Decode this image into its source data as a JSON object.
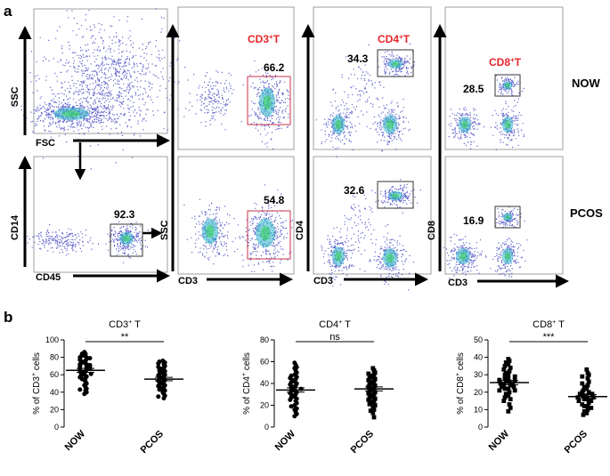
{
  "panel_a": {
    "letter": "a",
    "row_labels": [
      "NOW",
      "PCOS"
    ],
    "gate_titles": [
      {
        "main": "CD3",
        "sup": "+",
        "tail": "T"
      },
      {
        "main": "CD4",
        "sup": "+",
        "tail": "T"
      },
      {
        "main": "CD8",
        "sup": "+",
        "tail": "T"
      }
    ],
    "axis_labels": {
      "ssc": "SSC",
      "fsc": "FSC",
      "cd14": "CD14",
      "cd45": "CD45",
      "cd3": "CD3",
      "cd4": "CD4",
      "cd8": "CD8"
    },
    "gate_values": {
      "cd45_pcos": "92.3",
      "cd3_now": "66.2",
      "cd3_pcos": "54.8",
      "cd4_now": "34.3",
      "cd4_pcos": "32.6",
      "cd8_now": "28.5",
      "cd8_pcos": "16.9"
    },
    "colors": {
      "title_red": "#e8262b",
      "dot_blue": "#2b2fb8",
      "gate_red": "#c7334a",
      "gate_dark": "#333333"
    }
  },
  "panel_b": {
    "letter": "b",
    "chart_data": [
      {
        "type": "scatter",
        "title": {
          "main": "CD3",
          "sup": "+",
          "tail": " T"
        },
        "ylabel": {
          "pre": "% of CD3",
          "sup": "+",
          "post": " cells"
        },
        "categories": [
          "NOW",
          "PCOS"
        ],
        "yticks": [
          "0",
          "20",
          "40",
          "60",
          "80",
          "100"
        ],
        "ylim": [
          0,
          100
        ],
        "marker": [
          "circle",
          "circle"
        ],
        "significance": "**",
        "means": [
          65,
          55
        ],
        "sem": [
          2.2,
          2.0
        ],
        "series": [
          {
            "values": [
              86,
              84,
              84,
              82,
              81,
              80,
              80,
              79,
              78,
              77,
              76,
              75,
              74,
              73,
              72,
              72,
              71,
              70,
              70,
              69,
              68,
              68,
              67,
              66,
              65,
              64,
              63,
              62,
              62,
              61,
              60,
              59,
              58,
              57,
              56,
              55,
              54,
              52,
              50,
              48,
              46,
              44,
              43,
              42,
              40,
              38
            ]
          },
          {
            "values": [
              76,
              75,
              74,
              73,
              72,
              70,
              69,
              68,
              67,
              66,
              65,
              64,
              62,
              61,
              60,
              59,
              58,
              57,
              56,
              55,
              54,
              53,
              52,
              51,
              50,
              49,
              48,
              47,
              46,
              45,
              44,
              43,
              42,
              40,
              38,
              36,
              35,
              33
            ]
          }
        ]
      },
      {
        "type": "scatter",
        "title": {
          "main": "CD4",
          "sup": "+",
          "tail": " T"
        },
        "ylabel": {
          "pre": "% of CD4",
          "sup": "+",
          "post": " cells"
        },
        "categories": [
          "NOW",
          "PCOS"
        ],
        "yticks": [
          "0",
          "20",
          "40",
          "60",
          "80"
        ],
        "ylim": [
          0,
          80
        ],
        "marker": [
          "circle",
          "square"
        ],
        "significance": "ns",
        "means": [
          34,
          35
        ],
        "sem": [
          2.0,
          1.8
        ],
        "series": [
          {
            "values": [
              59,
              57,
              55,
              54,
              52,
              50,
              48,
              47,
              46,
              45,
              44,
              43,
              42,
              41,
              40,
              39,
              38,
              37,
              36,
              36,
              35,
              34,
              33,
              32,
              31,
              30,
              29,
              28,
              27,
              26,
              25,
              24,
              22,
              20,
              19,
              17,
              16,
              14,
              12,
              10
            ]
          },
          {
            "values": [
              54,
              52,
              50,
              49,
              48,
              47,
              46,
              45,
              44,
              43,
              42,
              41,
              40,
              39,
              38,
              37,
              36,
              35,
              34,
              33,
              32,
              31,
              30,
              29,
              28,
              27,
              26,
              25,
              24,
              23,
              22,
              21,
              20,
              18,
              16,
              15,
              13,
              9
            ]
          }
        ]
      },
      {
        "type": "scatter",
        "title": {
          "main": "CD8",
          "sup": "+",
          "tail": " T"
        },
        "ylabel": {
          "pre": "% of CD8",
          "sup": "+",
          "post": " cells"
        },
        "categories": [
          "NOW",
          "PCOS"
        ],
        "yticks": [
          "0",
          "10",
          "20",
          "30",
          "40",
          "50"
        ],
        "ylim": [
          0,
          50
        ],
        "marker": [
          "square",
          "square"
        ],
        "significance": "***",
        "means": [
          25.5,
          17.5
        ],
        "sem": [
          1.2,
          1.1
        ],
        "series": [
          {
            "values": [
              39,
              38,
              37,
              36,
              35,
              34,
              33,
              32,
              31,
              30,
              30,
              29,
              28,
              28,
              27,
              27,
              26,
              26,
              25,
              25,
              24,
              24,
              23,
              23,
              22,
              22,
              21,
              21,
              20,
              19,
              18,
              17,
              16,
              15,
              13,
              11,
              9
            ]
          },
          {
            "values": [
              33,
              31,
              30,
              29,
              28,
              26,
              25,
              24,
              23,
              22,
              21,
              20,
              20,
              19,
              19,
              18,
              18,
              17,
              17,
              16,
              16,
              15,
              15,
              14,
              13,
              12,
              12,
              11,
              10,
              9,
              8,
              7
            ]
          }
        ]
      }
    ]
  }
}
